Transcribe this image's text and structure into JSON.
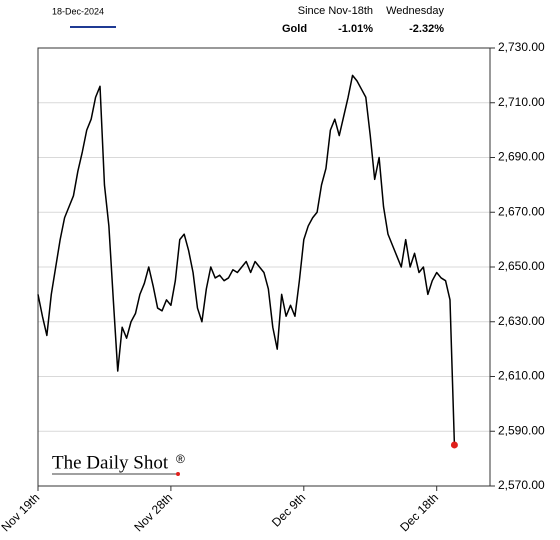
{
  "chart_data": {
    "type": "line",
    "date_label": "18-Dec-2024",
    "header": {
      "col1": "Since Nov-18th",
      "col2": "Wednesday",
      "row_name": "Gold",
      "col1_value": "-1.01%",
      "col2_value": "-2.32%"
    },
    "watermark": "The Daily Shot",
    "categories": [
      "Nov 19th",
      null,
      null,
      null,
      null,
      null,
      null,
      null,
      null,
      null,
      null,
      null,
      null,
      null,
      null,
      null,
      null,
      null,
      null,
      null,
      null,
      null,
      null,
      null,
      null,
      null,
      null,
      null,
      null,
      null,
      "Nov 28th",
      null,
      null,
      null,
      null,
      null,
      null,
      null,
      null,
      null,
      null,
      null,
      null,
      null,
      null,
      null,
      null,
      null,
      null,
      null,
      null,
      null,
      null,
      null,
      null,
      null,
      null,
      null,
      null,
      null,
      "Dec 9th",
      null,
      null,
      null,
      null,
      null,
      null,
      null,
      null,
      null,
      null,
      null,
      null,
      null,
      null,
      null,
      null,
      null,
      null,
      null,
      null,
      null,
      null,
      null,
      null,
      null,
      null,
      null,
      null,
      null,
      "Dec 18th",
      null,
      null,
      null,
      null
    ],
    "series": [
      {
        "name": "Gold",
        "color": "#000000",
        "marker_color": "#e0201b",
        "values": [
          2640,
          2632,
          2625,
          2640,
          2650,
          2660,
          2668,
          2672,
          2676,
          2685,
          2692,
          2700,
          2704,
          2712,
          2716,
          2680,
          2665,
          2638,
          2612,
          2628,
          2624,
          2630,
          2633,
          2640,
          2644,
          2650,
          2643,
          2635,
          2634,
          2638,
          2636,
          2645,
          2660,
          2662,
          2656,
          2648,
          2635,
          2630,
          2642,
          2650,
          2646,
          2647,
          2645,
          2646,
          2649,
          2648,
          2650,
          2652,
          2648,
          2652,
          2650,
          2648,
          2642,
          2628,
          2620,
          2640,
          2632,
          2636,
          2632,
          2645,
          2660,
          2665,
          2668,
          2670,
          2680,
          2686,
          2700,
          2704,
          2698,
          2705,
          2712,
          2720,
          2718,
          2715,
          2712,
          2698,
          2682,
          2690,
          2672,
          2662,
          2658,
          2654,
          2650,
          2660,
          2650,
          2655,
          2648,
          2650,
          2640,
          2645,
          2648,
          2646,
          2645,
          2638,
          2585
        ]
      }
    ],
    "ylim": [
      2570,
      2730
    ],
    "yticks": [
      {
        "value": 2570,
        "label": "2,570.00"
      },
      {
        "value": 2590,
        "label": "2,590.00"
      },
      {
        "value": 2610,
        "label": "2,610.00"
      },
      {
        "value": 2630,
        "label": "2,630.00"
      },
      {
        "value": 2650,
        "label": "2,650.00"
      },
      {
        "value": 2670,
        "label": "2,670.00"
      },
      {
        "value": 2690,
        "label": "2,690.00"
      },
      {
        "value": 2710,
        "label": "2,710.00"
      },
      {
        "value": 2730,
        "label": "2,730.00"
      }
    ],
    "grid": true
  }
}
